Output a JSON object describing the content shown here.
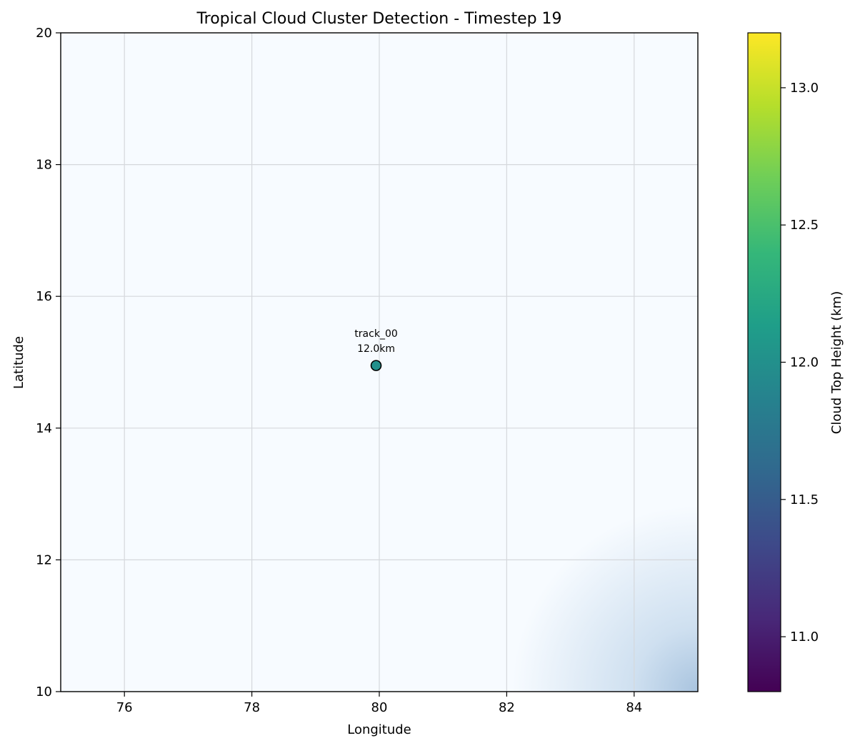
{
  "chart_data": {
    "type": "scatter",
    "title": "Tropical Cloud Cluster Detection - Timestep 19",
    "xlabel": "Longitude",
    "ylabel": "Latitude",
    "xlim": [
      75,
      85
    ],
    "ylim": [
      10,
      20
    ],
    "xticks": [
      "76",
      "78",
      "80",
      "82",
      "84"
    ],
    "xtick_values": [
      76,
      78,
      80,
      82,
      84
    ],
    "yticks": [
      "10",
      "12",
      "14",
      "16",
      "18",
      "20"
    ],
    "ytick_values": [
      10,
      12,
      14,
      16,
      18,
      20
    ],
    "grid": true,
    "points": [
      {
        "id": "track_00",
        "label": "track_00",
        "height_label": "12.0km",
        "x": 79.95,
        "y": 14.95,
        "height": 12.0
      }
    ],
    "background_field": {
      "description": "cloud field intensity increasing toward the lower-right corner",
      "base_color": "#f7fbff",
      "peak_color": "#a9c4df",
      "peak_corner": "bottom-right"
    },
    "colorbar": {
      "label": "Cloud Top Height (km)",
      "range": [
        10.8,
        13.2
      ],
      "ticks": [
        "11.0",
        "11.5",
        "12.0",
        "12.5",
        "13.0"
      ],
      "tick_values": [
        11.0,
        11.5,
        12.0,
        12.5,
        13.0
      ],
      "colormap": "viridis",
      "colors": [
        "#440154",
        "#482878",
        "#3e4989",
        "#31688e",
        "#26828e",
        "#1f9e89",
        "#35b779",
        "#6ece58",
        "#b5de2b",
        "#fde725"
      ]
    }
  }
}
